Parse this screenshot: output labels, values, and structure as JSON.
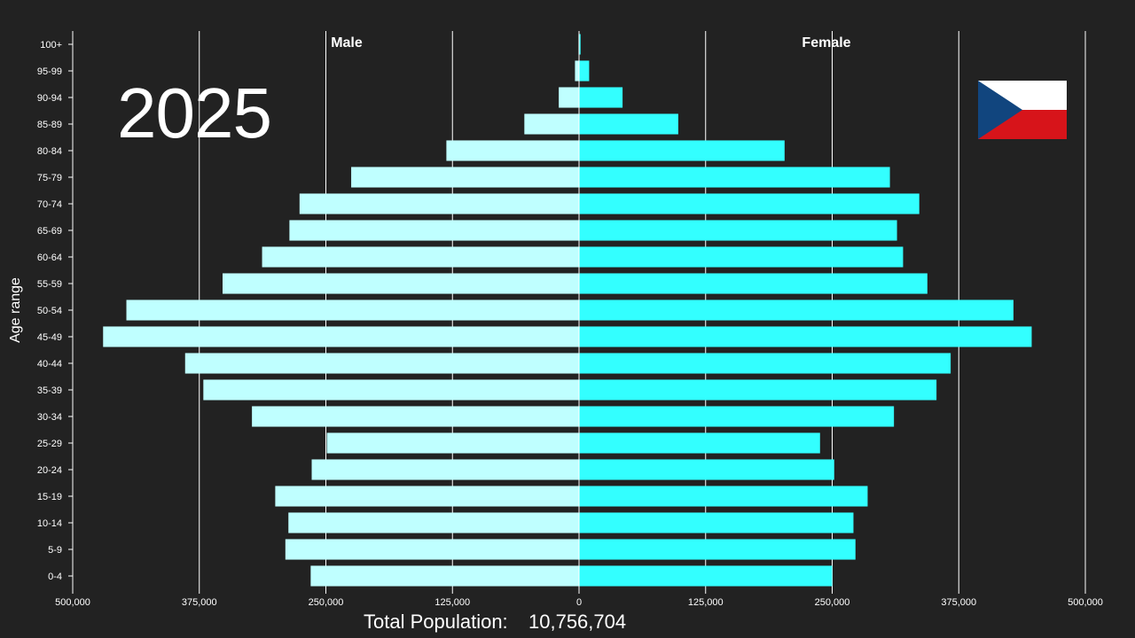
{
  "year": "2025",
  "total": {
    "label": "Total Population:",
    "value": "10,756,704"
  },
  "flag": {
    "icon": "czech-flag-icon",
    "colors": {
      "white": "#ffffff",
      "red": "#d7141a",
      "blue": "#11457e"
    }
  },
  "colors": {
    "background": "#222222",
    "male_bar": "#bfffff",
    "female_bar": "#33ffff",
    "grid": "#ffffff",
    "text": "#ffffff"
  },
  "chart_data": {
    "type": "bar",
    "orientation": "horizontal",
    "subtype": "population-pyramid",
    "ylabel": "Age range",
    "xlim": [
      -500000,
      500000
    ],
    "x_ticks": [
      -500000,
      -375000,
      -250000,
      -125000,
      0,
      125000,
      250000,
      375000,
      500000
    ],
    "x_tick_labels": [
      "500,000",
      "375,000",
      "250,000",
      "125,000",
      "0",
      "125,000",
      "250,000",
      "375,000",
      "500,000"
    ],
    "grid": true,
    "categories": [
      "0-4",
      "5-9",
      "10-14",
      "15-19",
      "20-24",
      "25-29",
      "30-34",
      "35-39",
      "40-44",
      "45-49",
      "50-54",
      "55-59",
      "60-64",
      "65-69",
      "70-74",
      "75-79",
      "80-84",
      "85-89",
      "90-94",
      "95-99",
      "100+"
    ],
    "series": [
      {
        "name": "Male",
        "side": "left",
        "color": "#bfffff",
        "values": [
          265000,
          290000,
          287000,
          300000,
          264000,
          249000,
          323000,
          371000,
          389000,
          470000,
          447000,
          352000,
          313000,
          286000,
          276000,
          225000,
          131000,
          54000,
          20000,
          4000,
          500
        ]
      },
      {
        "name": "Female",
        "side": "right",
        "color": "#33ffff",
        "values": [
          250000,
          273000,
          271000,
          285000,
          252000,
          238000,
          311000,
          353000,
          367000,
          447000,
          429000,
          344000,
          320000,
          314000,
          336000,
          307000,
          203000,
          98000,
          43000,
          10000,
          1500
        ]
      }
    ]
  }
}
